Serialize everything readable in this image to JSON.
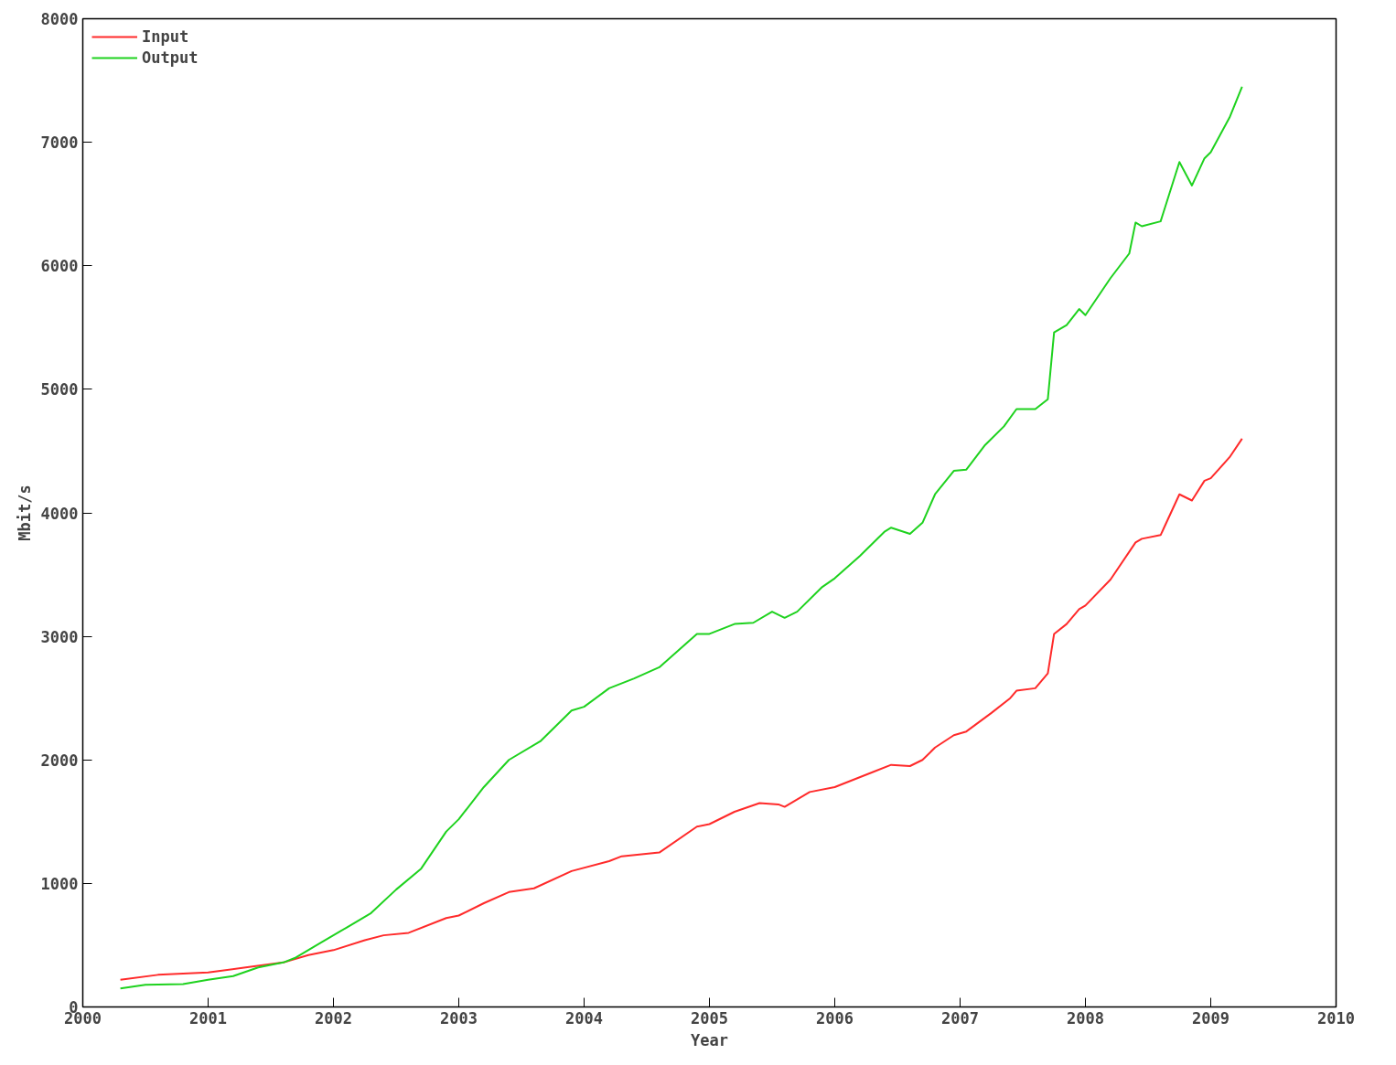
{
  "chart_data": {
    "type": "line",
    "xlabel": "Year",
    "ylabel": "Mbit/s",
    "xlim": [
      2000,
      2010
    ],
    "xticks": [
      2000,
      2001,
      2002,
      2003,
      2004,
      2005,
      2006,
      2007,
      2008,
      2009,
      2010
    ],
    "ylim": [
      0,
      8000
    ],
    "yticks": [
      0,
      1000,
      2000,
      3000,
      4000,
      5000,
      6000,
      7000,
      8000
    ],
    "grid": false,
    "legend": "top left",
    "marker": "none",
    "line_style": "solid",
    "series": [
      {
        "name": "Input",
        "color": "#ff2a2a",
        "x": [
          2000.3,
          2000.6,
          2001.0,
          2001.3,
          2001.6,
          2001.8,
          2002.0,
          2002.25,
          2002.4,
          2002.6,
          2002.9,
          2003.0,
          2003.2,
          2003.4,
          2003.6,
          2003.9,
          2004.2,
          2004.3,
          2004.6,
          2004.9,
          2005.0,
          2005.2,
          2005.4,
          2005.55,
          2005.6,
          2005.8,
          2006.0,
          2006.3,
          2006.45,
          2006.6,
          2006.7,
          2006.8,
          2006.95,
          2007.05,
          2007.25,
          2007.4,
          2007.45,
          2007.6,
          2007.7,
          2007.75,
          2007.85,
          2007.95,
          2008.0,
          2008.2,
          2008.4,
          2008.45,
          2008.6,
          2008.75,
          2008.85,
          2008.95,
          2009.0,
          2009.15,
          2009.25
        ],
        "values": [
          220,
          260,
          280,
          320,
          360,
          420,
          460,
          540,
          580,
          600,
          720,
          740,
          840,
          930,
          960,
          1100,
          1180,
          1220,
          1250,
          1460,
          1480,
          1580,
          1650,
          1640,
          1620,
          1740,
          1780,
          1900,
          1960,
          1950,
          2000,
          2100,
          2200,
          2230,
          2380,
          2500,
          2560,
          2580,
          2700,
          3020,
          3100,
          3220,
          3250,
          3460,
          3760,
          3790,
          3820,
          4150,
          4100,
          4260,
          4280,
          4450,
          4600
        ]
      },
      {
        "name": "Output",
        "color": "#1ed21e",
        "x": [
          2000.3,
          2000.5,
          2000.8,
          2001.0,
          2001.2,
          2001.4,
          2001.6,
          2001.7,
          2001.9,
          2002.1,
          2002.3,
          2002.5,
          2002.7,
          2002.9,
          2003.0,
          2003.2,
          2003.4,
          2003.65,
          2003.9,
          2004.0,
          2004.2,
          2004.4,
          2004.6,
          2004.9,
          2005.0,
          2005.2,
          2005.35,
          2005.5,
          2005.6,
          2005.7,
          2005.9,
          2006.0,
          2006.2,
          2006.4,
          2006.45,
          2006.6,
          2006.7,
          2006.8,
          2006.95,
          2007.05,
          2007.2,
          2007.35,
          2007.45,
          2007.6,
          2007.7,
          2007.75,
          2007.85,
          2007.95,
          2008.0,
          2008.2,
          2008.35,
          2008.4,
          2008.45,
          2008.6,
          2008.75,
          2008.85,
          2008.95,
          2009.0,
          2009.15,
          2009.25
        ],
        "values": [
          150,
          180,
          185,
          220,
          250,
          320,
          360,
          400,
          520,
          640,
          760,
          950,
          1120,
          1420,
          1520,
          1780,
          2000,
          2150,
          2400,
          2430,
          2580,
          2660,
          2750,
          3020,
          3020,
          3100,
          3110,
          3200,
          3150,
          3200,
          3400,
          3470,
          3650,
          3850,
          3880,
          3830,
          3920,
          4150,
          4340,
          4350,
          4550,
          4700,
          4840,
          4840,
          4920,
          5460,
          5520,
          5650,
          5600,
          5900,
          6100,
          6350,
          6320,
          6360,
          6840,
          6650,
          6870,
          6920,
          7200,
          7450
        ]
      }
    ]
  }
}
